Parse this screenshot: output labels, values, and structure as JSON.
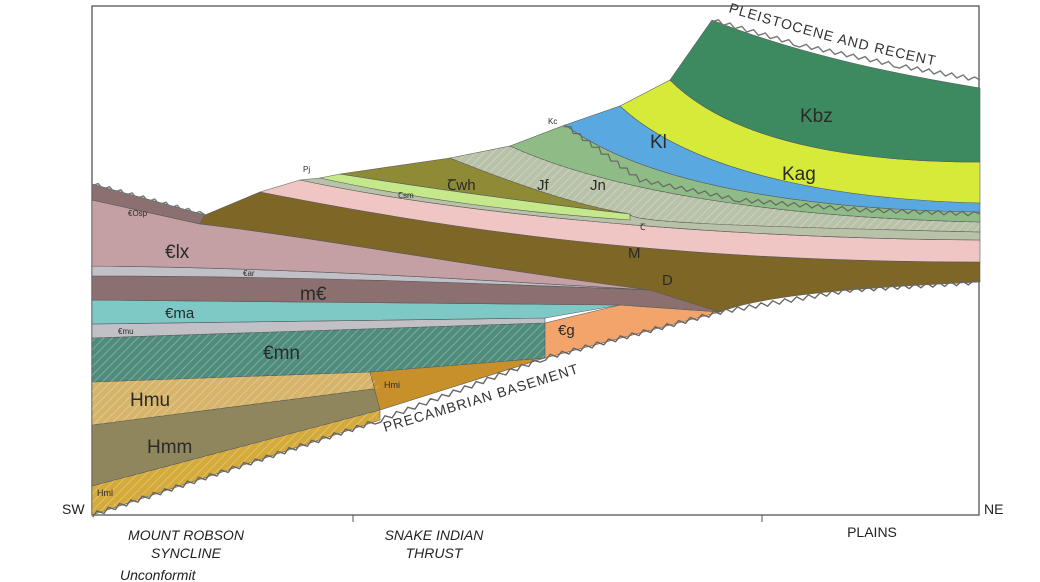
{
  "labels": {
    "Kbz": "Kbz",
    "Kag": "Kag",
    "Kl": "Kl",
    "Kc": "Kc",
    "Jn": "Jn",
    "Jf": "Jf",
    "Twh": "Ꞇwh",
    "Tsm": "Ꞇsm",
    "Pj": "Pj",
    "T": "Ꞇ",
    "M": "M",
    "D": "D",
    "COsp": "€Osp",
    "Clx": "€lx",
    "Car": "€ar",
    "mC": "m€",
    "Cma": "€ma",
    "Cmu": "€mu",
    "Cmn": "€mn",
    "Cg": "€g",
    "Hmu": "Hmu",
    "Hmm": "Hmm",
    "Hml": "Hml",
    "Hmi": "Hmi"
  },
  "annotations": {
    "pleistocene": "PLEISTOCENE AND RECENT",
    "basement": "PRECAMBRIAN BASEMENT"
  },
  "axis": {
    "left": "SW",
    "right": "NE",
    "loc1_line1": "MOUNT ROBSON",
    "loc1_line2": "SYNCLINE",
    "loc2_line1": "SNAKE INDIAN",
    "loc2_line2": "THRUST",
    "loc3": "PLAINS",
    "footnote": "Unconformit"
  },
  "colors": {
    "Kbz": "#3d8a60",
    "Kag": "#d6ea3a",
    "Kl": "#5aa8e0",
    "Jn": "#8fbb86",
    "Jf": "#b8c2a8",
    "Twh": "#8e8a36",
    "Tsm": "#c4e88a",
    "M": "#f0c6c4",
    "D": "#7e6626",
    "Clx": "#c4a0a4",
    "mC": "#8c7070",
    "Cma": "#7ec8c6",
    "Cmu": "#c0c0c6",
    "Cmn": "#4f8c7c",
    "Cg": "#f2a46a",
    "Hmu": "#d6b46a",
    "Hmm": "#90865e",
    "Hml": "#d4aa3a",
    "Hmi": "#c8902a"
  }
}
